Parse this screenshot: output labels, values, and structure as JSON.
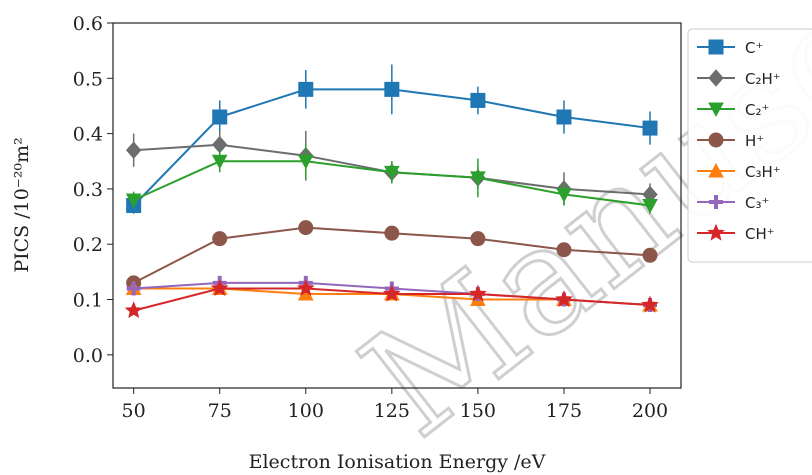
{
  "chart_data": {
    "type": "line",
    "title": "",
    "xlabel": "Electron Ionisation Energy /eV",
    "ylabel": "PICS /10⁻²⁰m²",
    "x": [
      50,
      75,
      100,
      125,
      150,
      175,
      200
    ],
    "xticks": [
      "50",
      "75",
      "100",
      "125",
      "150",
      "175",
      "200"
    ],
    "yticks": [
      "0.0",
      "0.1",
      "0.2",
      "0.3",
      "0.4",
      "0.5",
      "0.6"
    ],
    "xlim": [
      44,
      209
    ],
    "ylim": [
      -0.06,
      0.6
    ],
    "grid": false,
    "legend_position": "right",
    "series": [
      {
        "name": "C⁺",
        "color": "#1f77b4",
        "marker": "square",
        "values": [
          0.27,
          0.43,
          0.48,
          0.48,
          0.46,
          0.43,
          0.41
        ],
        "errors": [
          0.015,
          0.03,
          0.035,
          0.045,
          0.025,
          0.03,
          0.03
        ]
      },
      {
        "name": "C₂H⁺",
        "color": "#6d6d6d",
        "marker": "diamond",
        "values": [
          0.37,
          0.38,
          0.36,
          0.33,
          0.32,
          0.3,
          0.29
        ],
        "errors": [
          0.03,
          0.025,
          0.045,
          0.02,
          0.02,
          0.03,
          0.02
        ]
      },
      {
        "name": "C₂⁺",
        "color": "#2ca02c",
        "marker": "triangle-down",
        "values": [
          0.28,
          0.35,
          0.35,
          0.33,
          0.32,
          0.29,
          0.27
        ],
        "errors": [
          0.015,
          0.02,
          0.03,
          0.02,
          0.035,
          0.02,
          0.015
        ]
      },
      {
        "name": "H⁺",
        "color": "#8c564b",
        "marker": "circle",
        "values": [
          0.13,
          0.21,
          0.23,
          0.22,
          0.21,
          0.19,
          0.18
        ],
        "errors": [
          0.005,
          0.008,
          0.01,
          0.008,
          0.006,
          0.006,
          0.005
        ]
      },
      {
        "name": "C₃H⁺",
        "color": "#ff7f0e",
        "marker": "triangle-up",
        "values": [
          0.12,
          0.12,
          0.11,
          0.11,
          0.1,
          0.1,
          0.09
        ],
        "errors": [
          0.005,
          0.005,
          0.005,
          0.005,
          0.005,
          0.005,
          0.005
        ]
      },
      {
        "name": "C₃⁺",
        "color": "#9467bd",
        "marker": "plus",
        "values": [
          0.12,
          0.13,
          0.13,
          0.12,
          0.11,
          0.1,
          0.09
        ],
        "errors": [
          0.005,
          0.006,
          0.006,
          0.006,
          0.005,
          0.005,
          0.005
        ]
      },
      {
        "name": "CH⁺",
        "color": "#d62728",
        "marker": "star",
        "values": [
          0.08,
          0.12,
          0.12,
          0.11,
          0.11,
          0.1,
          0.09
        ],
        "errors": [
          0.005,
          0.006,
          0.006,
          0.005,
          0.005,
          0.005,
          0.005
        ]
      }
    ]
  },
  "watermark": {
    "text": "Manuscript"
  }
}
